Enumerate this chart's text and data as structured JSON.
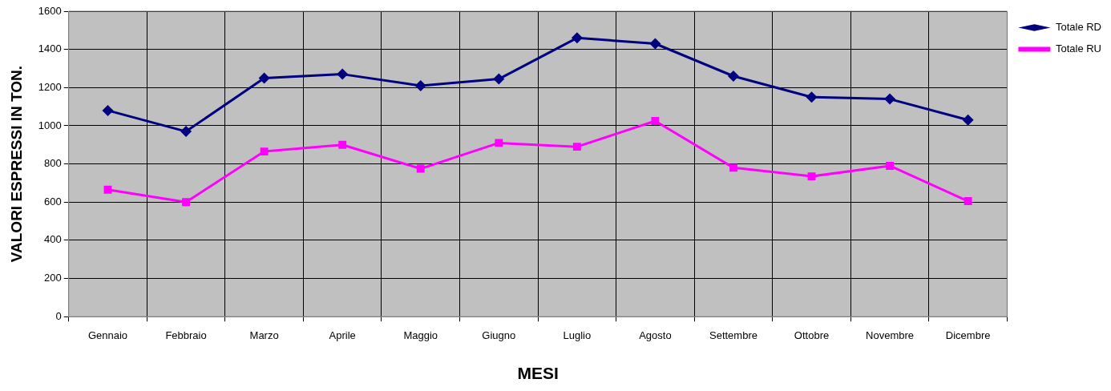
{
  "chart_data": {
    "type": "line",
    "xlabel": "MESI",
    "ylabel": "VALORI ESPRESSI IN TON.",
    "categories": [
      "Gennaio",
      "Febbraio",
      "Marzo",
      "Aprile",
      "Maggio",
      "Giugno",
      "Luglio",
      "Agosto",
      "Settembre",
      "Ottobre",
      "Novembre",
      "Dicembre"
    ],
    "series": [
      {
        "name": "Totale RD",
        "color": "#000080",
        "marker": "diamond",
        "values": [
          1080,
          970,
          1250,
          1270,
          1210,
          1245,
          1460,
          1430,
          1260,
          1150,
          1140,
          1030
        ]
      },
      {
        "name": "Totale RU",
        "color": "#ff00ff",
        "marker": "square",
        "values": [
          665,
          600,
          865,
          900,
          775,
          910,
          890,
          1025,
          780,
          735,
          790,
          605
        ]
      }
    ],
    "ylim": [
      0,
      1600
    ],
    "yticks": [
      0,
      200,
      400,
      600,
      800,
      1000,
      1200,
      1400,
      1600
    ],
    "grid": true,
    "legend": "top right",
    "line_style": "solid"
  }
}
